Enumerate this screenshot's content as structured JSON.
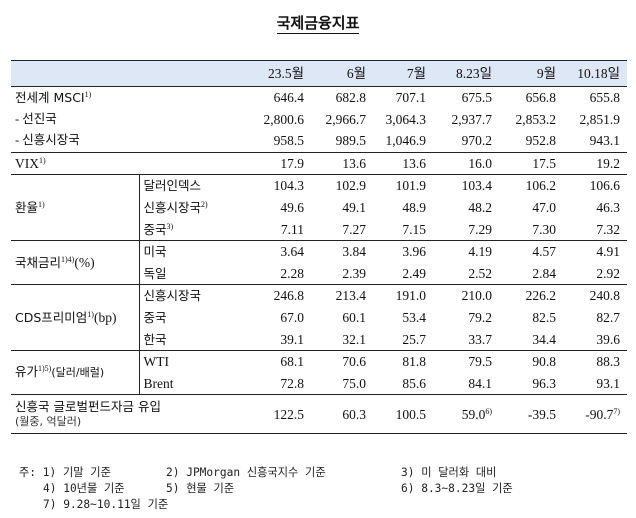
{
  "title": "국제금융지표",
  "header": {
    "cols": [
      "23.5월",
      "6월",
      "7월",
      "8.23일",
      "9월",
      "10.18일"
    ]
  },
  "rows": [
    {
      "group": "전세계 MSCI",
      "sup": "1)",
      "values": [
        "646.4",
        "682.8",
        "707.1",
        "675.5",
        "656.8",
        "655.8"
      ]
    },
    {
      "group": " - 선진국",
      "values": [
        "2,800.6",
        "2,966.7",
        "3,064.3",
        "2,937.7",
        "2,853.2",
        "2,851.9"
      ]
    },
    {
      "group": " - 신흥시장국",
      "values": [
        "958.5",
        "989.5",
        "1,046.9",
        "970.2",
        "952.8",
        "943.1"
      ]
    },
    {
      "group": "VIX",
      "sup": "1)",
      "values": [
        "17.9",
        "13.6",
        "13.6",
        "16.0",
        "17.5",
        "19.2"
      ]
    },
    {
      "group": "환율",
      "sup": "1)",
      "sub": "달러인덱스",
      "values": [
        "104.3",
        "102.9",
        "101.9",
        "103.4",
        "106.2",
        "106.6"
      ]
    },
    {
      "sub": "신흥시장국",
      "subsup": "2)",
      "values": [
        "49.6",
        "49.1",
        "48.9",
        "48.2",
        "47.0",
        "46.3"
      ]
    },
    {
      "sub": "중국",
      "subsup": "3)",
      "values": [
        "7.11",
        "7.27",
        "7.15",
        "7.29",
        "7.30",
        "7.32"
      ]
    },
    {
      "group": "국채금리",
      "sup": "1)4)",
      "unit": "(%)",
      "sub": "미국",
      "values": [
        "3.64",
        "3.84",
        "3.96",
        "4.19",
        "4.57",
        "4.91"
      ]
    },
    {
      "sub": "독일",
      "values": [
        "2.28",
        "2.39",
        "2.49",
        "2.52",
        "2.84",
        "2.92"
      ]
    },
    {
      "group": "CDS프리미엄",
      "sup": "1)",
      "unit": "(bp)",
      "sub": "신흥시장국",
      "values": [
        "246.8",
        "213.4",
        "191.0",
        "210.0",
        "226.2",
        "240.8"
      ]
    },
    {
      "sub": "중국",
      "values": [
        "67.0",
        "60.1",
        "53.4",
        "79.2",
        "82.5",
        "82.7"
      ]
    },
    {
      "sub": "한국",
      "values": [
        "39.1",
        "32.1",
        "25.7",
        "33.7",
        "34.4",
        "39.6"
      ]
    },
    {
      "group": "유가",
      "sup": "1)5)",
      "unit": "(달러/배럴)",
      "sub": "WTI",
      "values": [
        "68.1",
        "70.6",
        "81.8",
        "79.5",
        "90.8",
        "88.3"
      ]
    },
    {
      "sub": "Brent",
      "values": [
        "72.8",
        "75.0",
        "85.6",
        "84.1",
        "96.3",
        "93.1"
      ]
    },
    {
      "group": "신흥국 글로벌펀드자금 유입",
      "unit": "(월중, 억달러)",
      "values": [
        "122.5",
        "60.3",
        "100.5",
        "59.0",
        "-39.5",
        "-90.7"
      ],
      "valsups": [
        "",
        "",
        "",
        "6)",
        "",
        "7)"
      ]
    }
  ],
  "notes": [
    "주: 1) 기말 기준",
    "2) JPMorgan 신흥국지수 기준",
    "3) 미 달러화 대비",
    "4) 10년물 기준",
    "5) 현물 기준",
    "6) 8.3~8.23일 기준",
    "7) 9.28~10.11일 기준"
  ]
}
